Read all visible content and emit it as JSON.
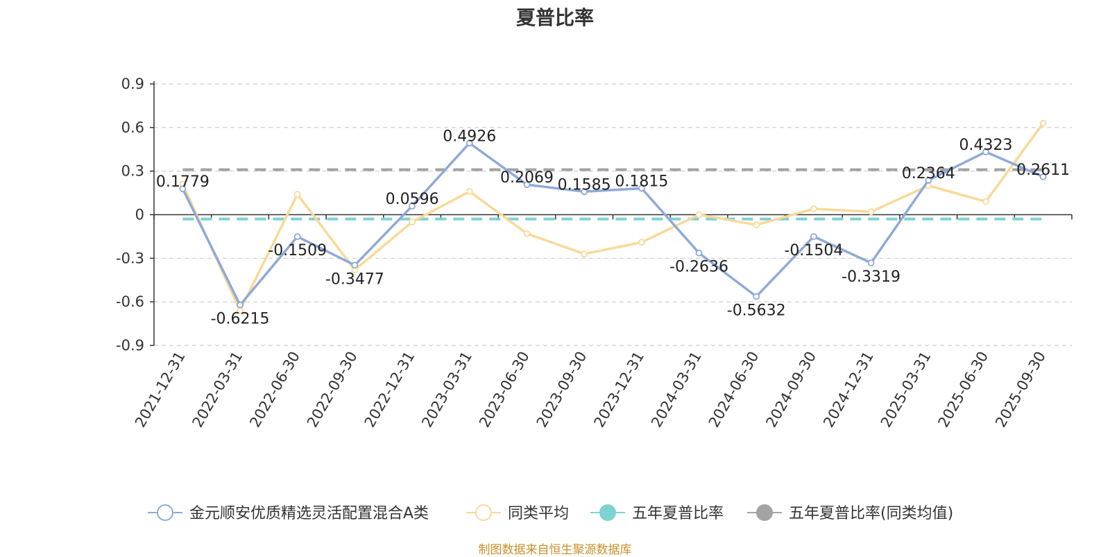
{
  "chart_data": {
    "type": "line",
    "title": "夏普比率",
    "categories": [
      "2021-12-31",
      "2022-03-31",
      "2022-06-30",
      "2022-09-30",
      "2022-12-31",
      "2023-03-31",
      "2023-06-30",
      "2023-09-30",
      "2023-12-31",
      "2024-03-31",
      "2024-06-30",
      "2024-09-30",
      "2024-12-31",
      "2025-03-31",
      "2025-06-30",
      "2025-09-30"
    ],
    "yticks": [
      "0.9",
      "0.6",
      "0.3",
      "0",
      "-0.3",
      "-0.6",
      "-0.9"
    ],
    "ylim": [
      -0.9,
      0.9
    ],
    "grid": true,
    "legend_position": "bottom",
    "series": [
      {
        "name": "金元顺安优质精选灵活配置混合A类",
        "color": "#8eaad8",
        "values": [
          0.1779,
          -0.6215,
          -0.1509,
          -0.3477,
          0.0596,
          0.4926,
          0.2069,
          0.1585,
          0.1815,
          -0.2636,
          -0.5632,
          -0.1504,
          -0.3319,
          0.2364,
          0.4323,
          0.2611
        ],
        "labels": [
          "0.1779",
          "-0.6215",
          "-0.1509",
          "-0.3477",
          "0.0596",
          "0.4926",
          "0.2069",
          "0.1585",
          "0.1815",
          "-0.2636",
          "-0.5632",
          "-0.1504",
          "-0.3319",
          "0.2364",
          "0.4323",
          "0.2611"
        ]
      },
      {
        "name": "同类平均",
        "color": "#f9d998",
        "values": [
          0.21,
          -0.66,
          0.14,
          -0.38,
          -0.05,
          0.16,
          -0.13,
          -0.27,
          -0.19,
          0.0,
          -0.07,
          0.04,
          0.02,
          0.2,
          0.09,
          0.63
        ]
      },
      {
        "name": "五年夏普比率",
        "color": "#7fd2d2",
        "value": -0.03
      },
      {
        "name": "五年夏普比率(同类均值)",
        "color": "#a3a3a3",
        "value": 0.31
      }
    ]
  },
  "source_note": "制图数据来自恒生聚源数据库"
}
